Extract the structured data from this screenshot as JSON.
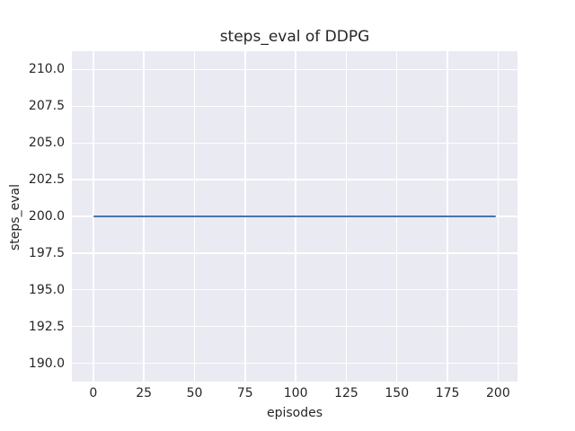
{
  "chart_data": {
    "type": "line",
    "title": "steps_eval of DDPG",
    "xlabel": "episodes",
    "ylabel": "steps_eval",
    "x_ticks": [
      0,
      25,
      50,
      75,
      100,
      125,
      150,
      175,
      200
    ],
    "x_tick_labels": [
      "0",
      "25",
      "50",
      "75",
      "100",
      "125",
      "150",
      "175",
      "200"
    ],
    "y_ticks": [
      190,
      192.5,
      195,
      197.5,
      200,
      202.5,
      205,
      207.5,
      210
    ],
    "y_tick_labels": [
      "190.0",
      "192.5",
      "195.0",
      "197.5",
      "200.0",
      "202.5",
      "205.0",
      "207.5",
      "210.0"
    ],
    "xlim": [
      -10.6,
      209.6
    ],
    "ylim": [
      188.75,
      211.25
    ],
    "grid": true,
    "colors": {
      "figure_background": "#ffffff",
      "plot_background": "#eaeaf2",
      "grid": "#ffffff",
      "line": "#4c72b0",
      "text": "#262626"
    },
    "series": [
      {
        "name": "steps_eval of DDPG",
        "description": "constant value 200 for every episode from 0 to 199",
        "x": [
          0,
          199
        ],
        "y": [
          200,
          200
        ]
      }
    ]
  }
}
